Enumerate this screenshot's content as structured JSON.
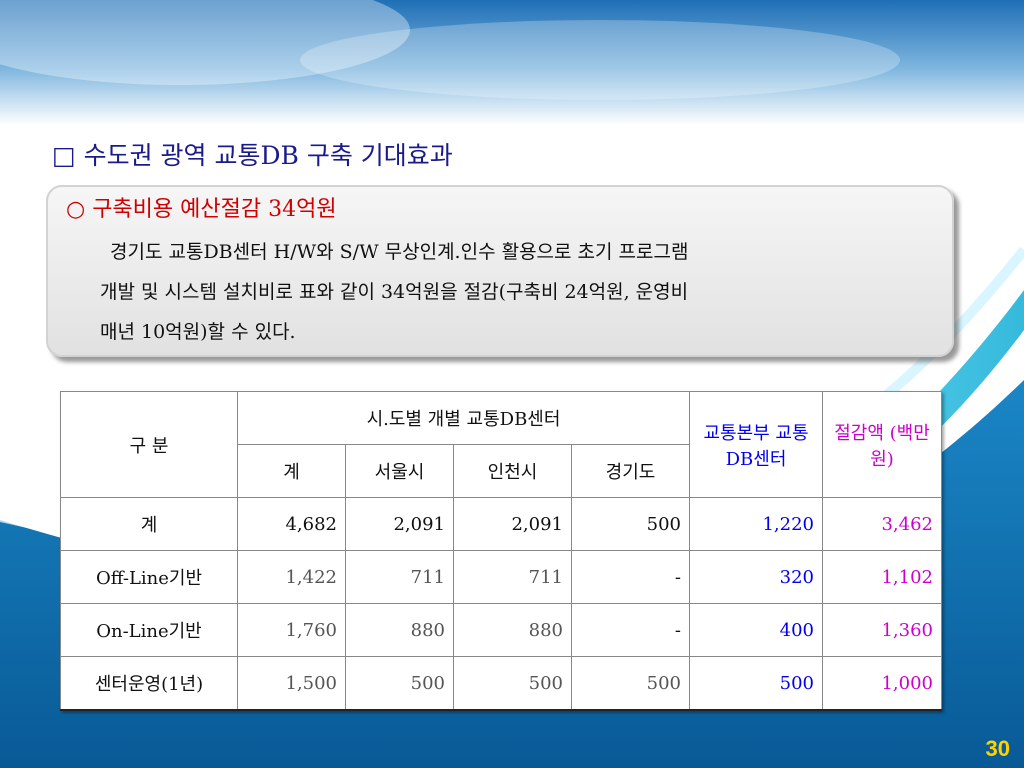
{
  "heading": "□ 수도권 광역 교통DB 구축 기대효과",
  "card": {
    "subtitle": "○ 구축비용 예산절감 34억원",
    "line1": "경기도 교통DB센터 H/W와 S/W 무상인계.인수 활용으로 초기 프로그램",
    "line2": "개발 및 시스템 설치비로 표와 같이 34억원을 절감(구축비 24억원, 운영비",
    "line3": "매년 10억원)할 수 있다."
  },
  "table": {
    "h_gubun": "구   분",
    "h_group": "시.도별 개별 교통DB센터",
    "h_hq": "교통본부 교통DB센터",
    "h_saving": "절감액 (백만원)",
    "h_sub": [
      "계",
      "서울시",
      "인천시",
      "경기도"
    ],
    "rows": [
      {
        "label": "계",
        "total": "4,682",
        "seoul": "2,091",
        "incheon": "2,091",
        "gyeonggi": "500",
        "hq": "1,220",
        "saving": "3,462"
      },
      {
        "label": "Off-Line기반",
        "total": "1,422",
        "seoul": "711",
        "incheon": "711",
        "gyeonggi": "-",
        "hq": "320",
        "saving": "1,102"
      },
      {
        "label": "On-Line기반",
        "total": "1,760",
        "seoul": "880",
        "incheon": "880",
        "gyeonggi": "-",
        "hq": "400",
        "saving": "1,360"
      },
      {
        "label": "센터운영(1년)",
        "total": "1,500",
        "seoul": "500",
        "incheon": "500",
        "gyeonggi": "500",
        "hq": "500",
        "saving": "1,000"
      }
    ]
  },
  "page_number": "30",
  "colors": {
    "heading": "#1a1a8c",
    "subtitle": "#d00000",
    "hq": "#0000ee",
    "saving": "#cc00cc",
    "page_number": "#ffd200"
  }
}
